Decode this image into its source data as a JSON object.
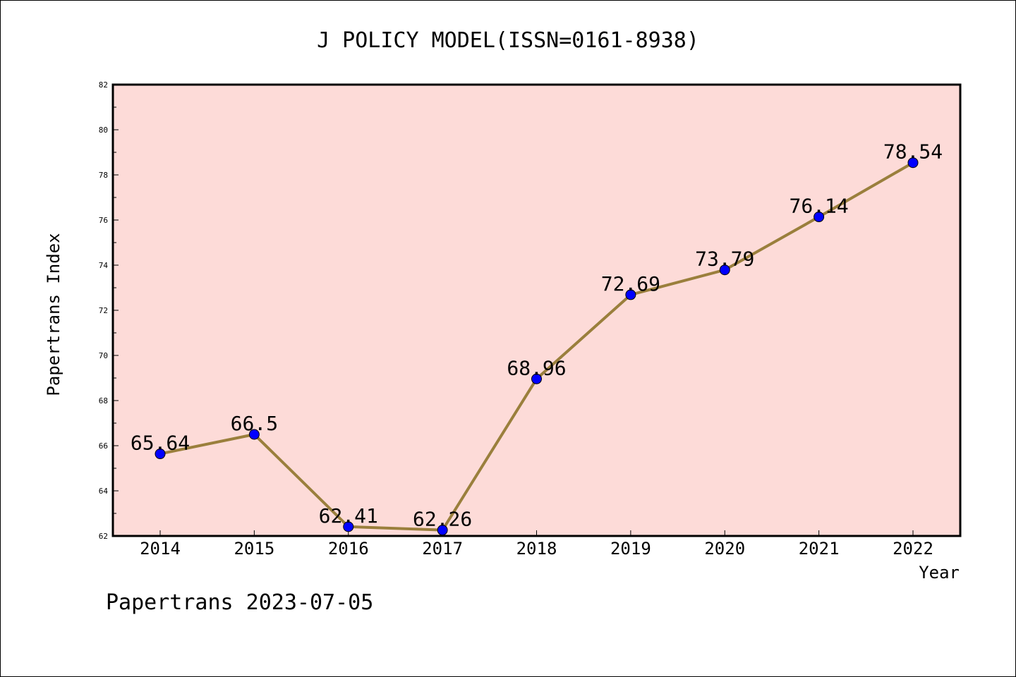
{
  "chart_data": {
    "type": "line",
    "title": "J POLICY MODEL(ISSN=0161-8938)",
    "xlabel": "Year",
    "ylabel": "Papertrans Index",
    "footer": "Papertrans 2023-07-05",
    "categories": [
      "2014",
      "2015",
      "2016",
      "2017",
      "2018",
      "2019",
      "2020",
      "2021",
      "2022"
    ],
    "values": [
      65.64,
      66.5,
      62.41,
      62.26,
      68.96,
      72.69,
      73.79,
      76.14,
      78.54
    ],
    "labels": [
      "65.64",
      "66.5",
      "62.41",
      "62.26",
      "68.96",
      "72.69",
      "73.79",
      "76.14",
      "78.54"
    ],
    "ylim": [
      62,
      82
    ],
    "yticks": [
      "62",
      "64",
      "66",
      "68",
      "70",
      "72",
      "74",
      "76",
      "78",
      "80",
      "82"
    ],
    "grid": false,
    "legend": "none",
    "colors": {
      "plot_background": "#fddbd8",
      "line": "#9a7f3c",
      "marker": "#0000ff"
    }
  }
}
